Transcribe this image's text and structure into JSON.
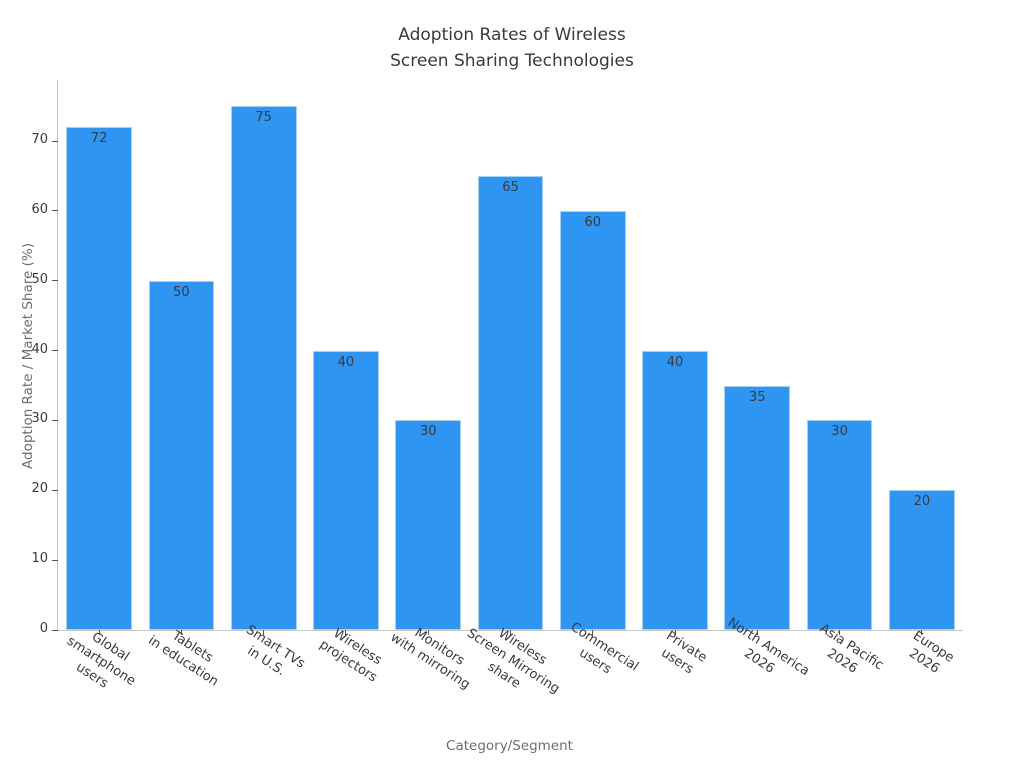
{
  "chart_data": {
    "type": "bar",
    "title": "Adoption Rates of Wireless\nScreen Sharing Technologies",
    "xlabel": "Category/Segment",
    "ylabel": "Adoption Rate / Market Share (%)",
    "categories": [
      "Global\nsmartphone\nusers",
      "Tablets\nin education",
      "Smart TVs\nin U.S.",
      "Wireless\nprojectors",
      "Monitors\nwith mirroring",
      "Wireless\nScreen Mirroring\nshare",
      "Commercial\nusers",
      "Private\nusers",
      "North America\n2026",
      "Asia Pacific\n2026",
      "Europe\n2026"
    ],
    "values": [
      72,
      50,
      75,
      40,
      30,
      65,
      60,
      40,
      35,
      30,
      20
    ],
    "yticks": [
      0,
      10,
      20,
      30,
      40,
      50,
      60,
      70
    ],
    "ylim": [
      0,
      78.75
    ],
    "grid": false,
    "legend": null,
    "bar_color": "#2e95f3",
    "bar_edge_color": "#a5d1f2",
    "value_label_color": "#3a3a3a",
    "label_rotation_deg": 33
  }
}
